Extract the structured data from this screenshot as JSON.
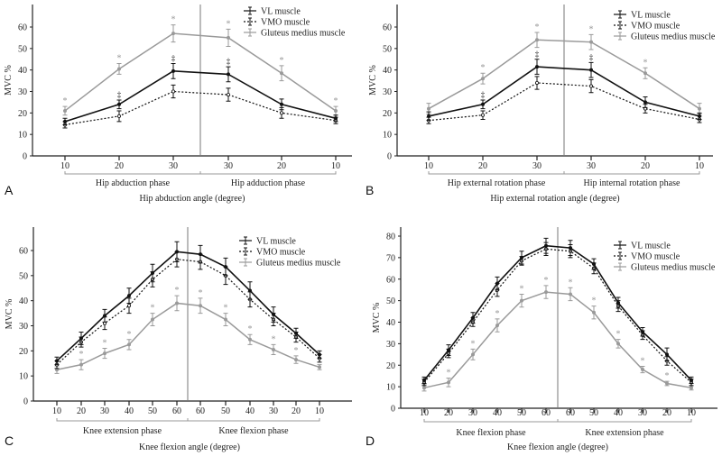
{
  "legend_labels": [
    "VL muscle",
    "VMO muscle",
    "Gluteus medius muscle"
  ],
  "series_colors": {
    "VL": "#111111",
    "VMO": "#111111",
    "GM": "#9a9a9a"
  },
  "chart_data": [
    {
      "type": "line",
      "panel": "A",
      "ylabel": "MVC %",
      "ylim": [
        0,
        60
      ],
      "yticks": [
        0,
        10,
        20,
        30,
        40,
        50,
        60
      ],
      "xlabel": "Hip abduction angle (degree)",
      "categories": [
        "10",
        "20",
        "30",
        "30",
        "20",
        "10"
      ],
      "phases": [
        "Hip abduction phase",
        "Hip adduction phase"
      ],
      "series": [
        {
          "name": "VL muscle",
          "values": [
            16,
            24,
            39.5,
            38,
            24,
            17.5
          ],
          "error": [
            1.5,
            2,
            3.5,
            3.5,
            2.5,
            1.5
          ],
          "marker": "‡",
          "marked": [
            1,
            2,
            3
          ]
        },
        {
          "name": "VMO muscle",
          "values": [
            14.5,
            18.5,
            30,
            28.5,
            20,
            16.5
          ],
          "error": [
            1.5,
            2.5,
            3,
            3,
            2.5,
            1.5
          ],
          "marker": "",
          "marked": []
        },
        {
          "name": "Gluteus medius muscle",
          "values": [
            21,
            40.5,
            57,
            55,
            38.5,
            21
          ],
          "error": [
            2,
            2.5,
            4,
            4,
            3.5,
            2
          ],
          "marker": "*",
          "marked": [
            0,
            1,
            2,
            3,
            4,
            5
          ]
        }
      ]
    },
    {
      "type": "line",
      "panel": "B",
      "ylabel": "MVC %",
      "ylim": [
        0,
        60
      ],
      "yticks": [
        0,
        10,
        20,
        30,
        40,
        50,
        60
      ],
      "xlabel": "Hip external rotation  angle (degree)",
      "categories": [
        "10",
        "20",
        "30",
        "30",
        "20",
        "10"
      ],
      "phases": [
        "Hip external rotation phase",
        "Hip internal rotation phase"
      ],
      "series": [
        {
          "name": "VL muscle",
          "values": [
            18.5,
            24,
            41.5,
            40,
            25,
            18.5
          ],
          "error": [
            2,
            2,
            3.5,
            3.5,
            2.5,
            1.5
          ],
          "marker": "‡",
          "marked": [
            1,
            2,
            3
          ]
        },
        {
          "name": "VMO muscle",
          "values": [
            16.5,
            19,
            34,
            32.5,
            22,
            17
          ],
          "error": [
            1.5,
            2,
            3,
            3,
            2,
            1.5
          ],
          "marker": "",
          "marked": []
        },
        {
          "name": "Gluteus medius muscle",
          "values": [
            22,
            36,
            54,
            53,
            38.5,
            22
          ],
          "error": [
            2.5,
            2.5,
            3.5,
            3.5,
            2.5,
            2.5
          ],
          "marker": "*",
          "marked": [
            1,
            2,
            3,
            4
          ]
        }
      ]
    },
    {
      "type": "line",
      "panel": "C",
      "ylabel": "MVC %",
      "ylim": [
        0,
        60
      ],
      "yticks": [
        0,
        10,
        20,
        30,
        40,
        50,
        60
      ],
      "xlabel": "Knee flexion  angle (degree)",
      "categories": [
        "10",
        "20",
        "30",
        "40",
        "50",
        "60",
        "60",
        "50",
        "40",
        "30",
        "20",
        "10"
      ],
      "phases": [
        "Knee extension phase",
        "Knee flexion phase"
      ],
      "series": [
        {
          "name": "VL muscle",
          "values": [
            16,
            25,
            34,
            42,
            51,
            59.5,
            58.5,
            53.5,
            44,
            34.5,
            27,
            18.5
          ],
          "error": [
            1.5,
            2.5,
            2.5,
            3,
            3.5,
            4,
            3.5,
            3.5,
            3.5,
            3,
            2,
            1.5
          ],
          "marker": "",
          "marked": []
        },
        {
          "name": "VMO muscle",
          "values": [
            14.5,
            23.5,
            31,
            38,
            48.5,
            56.5,
            55.5,
            50,
            40.5,
            32.5,
            25.5,
            17
          ],
          "error": [
            1.5,
            2,
            2.5,
            3,
            3,
            3,
            3,
            3.5,
            3,
            2.5,
            2,
            1.5
          ],
          "marker": "",
          "marked": []
        },
        {
          "name": "Gluteus medius muscle",
          "values": [
            12.5,
            14.5,
            19,
            22.5,
            32.5,
            39,
            38,
            32.5,
            24.5,
            20.5,
            16.5,
            13.5
          ],
          "error": [
            1.5,
            2,
            2,
            2,
            2.5,
            3,
            3,
            2.5,
            2,
            2,
            1.5,
            1
          ],
          "marker": "*",
          "marked": [
            1,
            2,
            3,
            4,
            5,
            6,
            7,
            8,
            9,
            10
          ]
        }
      ]
    },
    {
      "type": "line",
      "panel": "D",
      "ylabel": "MVC %",
      "ylim": [
        0,
        80
      ],
      "yticks": [
        0,
        10,
        20,
        30,
        40,
        50,
        60,
        70,
        80
      ],
      "xlabel": "Knee flexion  angle (degree)",
      "categories": [
        "10",
        "20",
        "30",
        "40",
        "50",
        "60",
        "60",
        "50",
        "40",
        "30",
        "20",
        "10"
      ],
      "phases": [
        "Knee flexion phase",
        "Knee extension phase"
      ],
      "series": [
        {
          "name": "VL muscle",
          "values": [
            13,
            27,
            42,
            58,
            70,
            75.5,
            74.5,
            67,
            49,
            35.5,
            25,
            13
          ],
          "error": [
            1.5,
            2.5,
            2.5,
            3,
            3,
            3.5,
            3.5,
            2.5,
            2.5,
            2,
            3,
            1.5
          ],
          "marker": "",
          "marked": []
        },
        {
          "name": "VMO muscle",
          "values": [
            12,
            25.5,
            40,
            55,
            68.5,
            74,
            73,
            65,
            47.5,
            34,
            22,
            12
          ],
          "error": [
            1.5,
            2,
            2,
            3,
            2,
            3,
            3,
            2.5,
            2.5,
            2,
            2,
            1.5
          ],
          "marker": "",
          "marked": []
        },
        {
          "name": "Gluteus medius muscle",
          "values": [
            9.5,
            12,
            25,
            38.5,
            50,
            54,
            53,
            44.5,
            30,
            18,
            11.5,
            9.5
          ],
          "error": [
            1.5,
            2,
            2.5,
            3,
            3,
            3,
            3,
            3,
            2,
            1.5,
            1,
            1
          ],
          "marker": "*",
          "marked": [
            1,
            2,
            3,
            4,
            5,
            6,
            7,
            8,
            9,
            10
          ]
        }
      ]
    }
  ]
}
